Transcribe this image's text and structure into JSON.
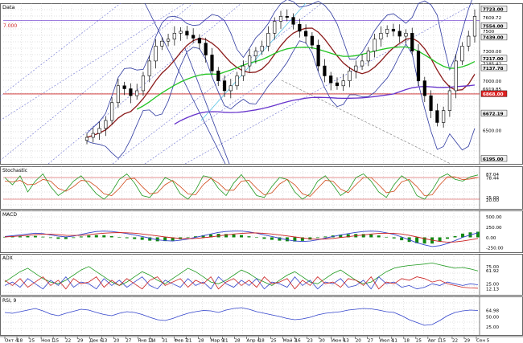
{
  "colors": {
    "background": "#ffffff",
    "grid": "#b4b4b4",
    "candle": "#000000",
    "bb": "#2f3aa0",
    "ma_fast": "#8b1a1a",
    "ma_mid": "#22c422",
    "ma_slow": "#6633cc",
    "ref_red": "#cc2222",
    "pct_k": "#1f9a1f",
    "pct_d": "#d14a1a",
    "macd_line": "#3344cc",
    "macd_signal": "#cc2222",
    "macd_hist": "#118811",
    "adx_line": "#1f9a1f",
    "plus_di": "#3344cc",
    "minus_di": "#cc2222",
    "rsi": "#3344cc",
    "trend": "#6a6fd0"
  },
  "chart_data": [
    {
      "type": "candlestick",
      "title": "Data",
      "ylim": [
        6195,
        7750
      ],
      "yticks": [
        "7723.00",
        "7609.72",
        "7554.00",
        "7500",
        "7439.00",
        "7300.00",
        "7217.00",
        "7185.42",
        "7137.78",
        "7000.00",
        "6919.85",
        "6868.00",
        "6672.19",
        "6500.00",
        "6195.00"
      ],
      "yticks_highlighted": [
        "7723.00",
        "7554.00",
        "7439.00",
        "7217.00",
        "7137.78",
        "6868.00",
        "6672.19",
        "6195.00"
      ],
      "yticks_red": [
        "6868.00"
      ],
      "corner_label": "7.000",
      "series": [
        {
          "name": "close",
          "values": [
            6430,
            6470,
            6520,
            6600,
            6780,
            6950,
            6920,
            6850,
            6900,
            7050,
            7200,
            7350,
            7400,
            7420,
            7480,
            7500,
            7460,
            7430,
            7380,
            7260,
            7100,
            7000,
            6900,
            6950,
            7050,
            7150,
            7250,
            7300,
            7350,
            7480,
            7600,
            7650,
            7640,
            7570,
            7500,
            7450,
            7360,
            7150,
            7050,
            6980,
            6950,
            7000,
            7100,
            7150,
            7200,
            7300,
            7420,
            7480,
            7520,
            7500,
            7450,
            7480,
            7300,
            7000,
            6850,
            6700,
            6580,
            6700,
            6900,
            7200,
            7350,
            7450,
            7650
          ]
        }
      ]
    },
    {
      "type": "line",
      "title": "Stochastic",
      "ylim": [
        0,
        100
      ],
      "yticks": [
        "87.04",
        "78.44",
        "25.00",
        "20.00"
      ],
      "series": [
        {
          "name": "%K",
          "values": [
            80,
            60,
            85,
            40,
            70,
            90,
            55,
            30,
            45,
            70,
            85,
            60,
            35,
            20,
            40,
            75,
            90,
            65,
            30,
            25,
            50,
            80,
            70,
            35,
            20,
            45,
            85,
            80,
            50,
            30,
            65,
            88,
            60,
            30,
            25,
            55,
            80,
            75,
            40,
            20,
            35,
            70,
            85,
            60,
            30,
            45,
            80,
            90,
            70,
            40,
            25,
            60,
            85,
            70,
            30,
            20,
            45,
            80,
            90,
            75,
            70,
            82,
            87
          ]
        },
        {
          "name": "%D",
          "values": [
            70,
            68,
            72,
            60,
            62,
            75,
            70,
            50,
            42,
            55,
            72,
            70,
            55,
            35,
            30,
            50,
            75,
            78,
            55,
            35,
            38,
            60,
            72,
            55,
            35,
            32,
            60,
            78,
            65,
            45,
            45,
            70,
            72,
            50,
            32,
            38,
            62,
            75,
            60,
            35,
            28,
            50,
            72,
            70,
            48,
            38,
            60,
            80,
            80,
            60,
            38,
            42,
            68,
            75,
            55,
            30,
            32,
            60,
            82,
            82,
            74,
            76,
            80
          ]
        }
      ]
    },
    {
      "type": "bar",
      "title": "MACD",
      "ylim": [
        -300,
        550
      ],
      "yticks": [
        "500.00",
        "250.00",
        "0.00",
        "-250.00"
      ],
      "series": [
        {
          "name": "MACD",
          "values": [
            20,
            40,
            60,
            80,
            100,
            90,
            60,
            30,
            10,
            30,
            70,
            110,
            140,
            150,
            140,
            120,
            90,
            60,
            20,
            -20,
            -60,
            -80,
            -90,
            -70,
            -40,
            0,
            40,
            80,
            120,
            140,
            150,
            150,
            130,
            100,
            60,
            20,
            -20,
            -60,
            -90,
            -100,
            -90,
            -60,
            -20,
            20,
            60,
            90,
            120,
            140,
            150,
            140,
            110,
            70,
            10,
            -60,
            -130,
            -180,
            -220,
            -200,
            -150,
            -80,
            0,
            60,
            110
          ]
        },
        {
          "name": "Signal",
          "values": [
            10,
            20,
            35,
            50,
            65,
            75,
            75,
            65,
            50,
            45,
            50,
            65,
            85,
            100,
            110,
            115,
            110,
            100,
            80,
            60,
            35,
            10,
            -10,
            -25,
            -30,
            -25,
            -10,
            10,
            35,
            60,
            80,
            95,
            105,
            105,
            95,
            80,
            60,
            35,
            10,
            -15,
            -35,
            -45,
            -40,
            -25,
            -5,
            15,
            40,
            60,
            80,
            95,
            100,
            95,
            80,
            50,
            10,
            -30,
            -70,
            -100,
            -115,
            -110,
            -90,
            -60,
            -25
          ]
        }
      ]
    },
    {
      "type": "line",
      "title": "ADX",
      "ylim": [
        0,
        100
      ],
      "yticks": [
        "75.00",
        "61.92",
        "25.00",
        "12.13"
      ],
      "series": [
        {
          "name": "ADX",
          "values": [
            30,
            45,
            60,
            70,
            55,
            40,
            30,
            25,
            35,
            50,
            65,
            75,
            60,
            45,
            30,
            20,
            30,
            45,
            60,
            50,
            35,
            25,
            40,
            55,
            70,
            60,
            45,
            30,
            25,
            35,
            50,
            65,
            55,
            40,
            30,
            20,
            35,
            50,
            60,
            45,
            30,
            25,
            40,
            55,
            65,
            50,
            35,
            25,
            30,
            45,
            60,
            70,
            75,
            78,
            80,
            82,
            85,
            80,
            75,
            70,
            72,
            68,
            62
          ]
        },
        {
          "name": "+DI",
          "values": [
            20,
            30,
            15,
            40,
            25,
            10,
            35,
            20,
            45,
            15,
            30,
            25,
            10,
            40,
            20,
            35,
            15,
            30,
            45,
            20,
            10,
            35,
            25,
            15,
            40,
            20,
            30,
            10,
            45,
            25,
            15,
            35,
            20,
            40,
            10,
            30,
            25,
            15,
            45,
            20,
            35,
            10,
            30,
            25,
            40,
            15,
            20,
            35,
            10,
            45,
            25,
            30,
            15,
            20,
            10,
            15,
            25,
            20,
            30,
            25,
            20,
            25,
            22
          ]
        },
        {
          "name": "-DI",
          "values": [
            35,
            20,
            40,
            15,
            30,
            45,
            20,
            35,
            10,
            40,
            25,
            30,
            45,
            15,
            35,
            20,
            40,
            25,
            10,
            35,
            45,
            20,
            30,
            40,
            15,
            35,
            25,
            45,
            10,
            30,
            40,
            20,
            35,
            15,
            45,
            25,
            30,
            40,
            10,
            35,
            20,
            45,
            25,
            30,
            15,
            40,
            35,
            20,
            45,
            10,
            30,
            25,
            40,
            35,
            45,
            40,
            30,
            35,
            25,
            20,
            15,
            13,
            12
          ]
        }
      ]
    },
    {
      "type": "line",
      "title": "RSI, 9",
      "ylim": [
        10,
        90
      ],
      "yticks": [
        "64.98",
        "50.00",
        "25.00"
      ],
      "series": [
        {
          "name": "RSI",
          "values": [
            60,
            58,
            62,
            66,
            70,
            64,
            56,
            52,
            58,
            63,
            68,
            66,
            60,
            55,
            52,
            58,
            62,
            60,
            55,
            48,
            42,
            40,
            45,
            52,
            58,
            62,
            65,
            64,
            60,
            66,
            70,
            72,
            68,
            62,
            58,
            54,
            50,
            45,
            42,
            44,
            48,
            54,
            58,
            60,
            62,
            66,
            68,
            70,
            69,
            66,
            62,
            60,
            52,
            42,
            35,
            28,
            30,
            40,
            52,
            60,
            64,
            66,
            65
          ]
        }
      ]
    }
  ],
  "x_axis": {
    "ticks": [
      "Окт 4",
      "18",
      "25",
      "Ноя 1",
      "15",
      "22",
      "29",
      "Дек 6",
      "13",
      "20",
      "27",
      "Янв 11",
      "24",
      "31",
      "Фев 7",
      "21",
      "28",
      "Мар 9",
      "21",
      "28",
      "Апр 4",
      "18",
      "25",
      "Май 3",
      "16",
      "23",
      "30",
      "Июн 6",
      "13",
      "20",
      "27",
      "Июл 4",
      "11",
      "18",
      "25",
      "Авг 1",
      "15",
      "22",
      "29",
      "Сен 5"
    ]
  }
}
